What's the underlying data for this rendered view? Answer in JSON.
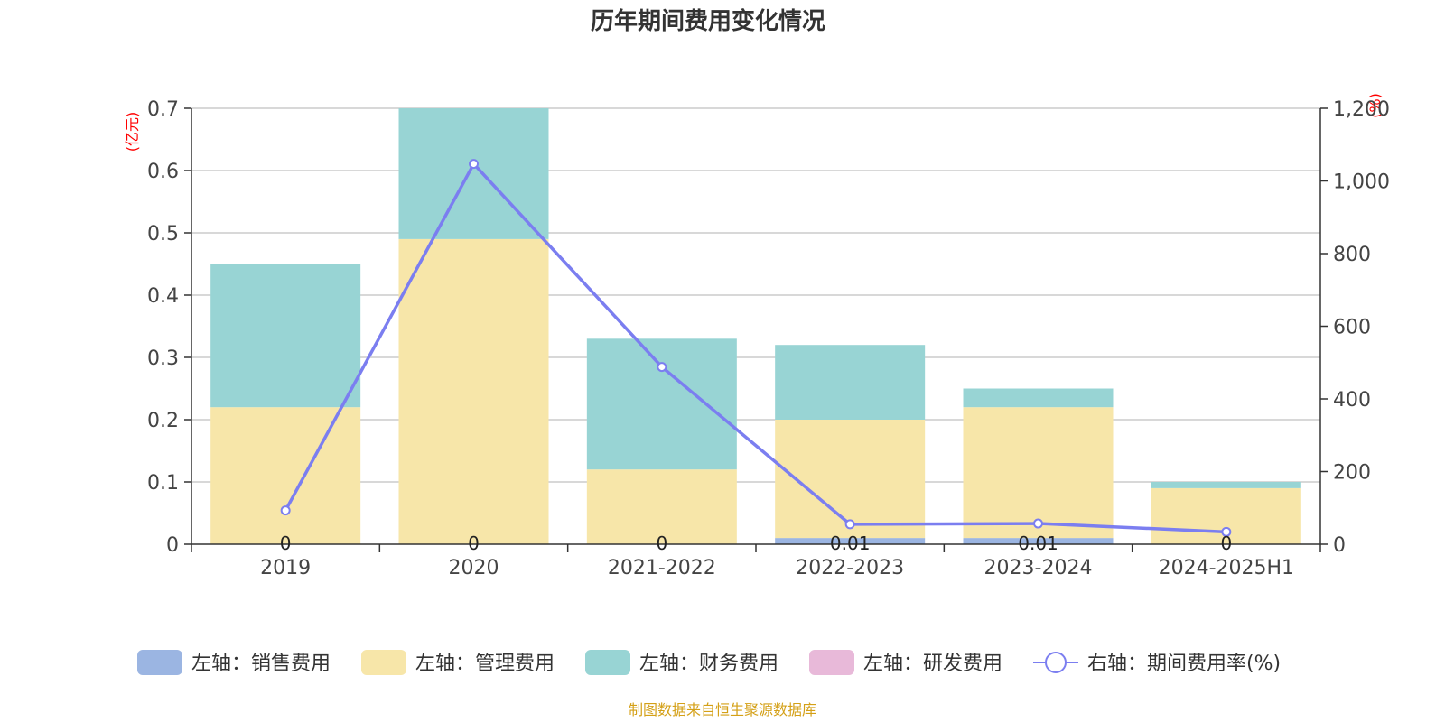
{
  "chart_data": {
    "type": "bar",
    "stacked": true,
    "title": "历年期间费用变化情况",
    "categories": [
      "2019",
      "2020",
      "2021-2022",
      "2022-2023",
      "2023-2024",
      "2024-2025H1"
    ],
    "left_axis": {
      "unit": "(亿元)",
      "min": 0,
      "max": 0.7,
      "ticks": [
        "0",
        "0.1",
        "0.2",
        "0.3",
        "0.4",
        "0.5",
        "0.6",
        "0.7"
      ]
    },
    "right_axis": {
      "unit": "(%)",
      "min": 0,
      "max": 1200,
      "ticks": [
        "0",
        "200",
        "400",
        "600",
        "800",
        "1,000",
        "1,200"
      ]
    },
    "series": [
      {
        "name": "左轴：销售费用",
        "type": "bar",
        "axis": "left",
        "color": "#9bb5e2",
        "values": [
          0,
          0,
          0,
          0.01,
          0.01,
          0
        ],
        "labels": [
          "0",
          "0",
          "0",
          "0.01",
          "0.01",
          "0"
        ]
      },
      {
        "name": "左轴：管理费用",
        "type": "bar",
        "axis": "left",
        "color": "#f7e6a9",
        "values": [
          0.22,
          0.49,
          0.12,
          0.19,
          0.21,
          0.09
        ]
      },
      {
        "name": "左轴：财务费用",
        "type": "bar",
        "axis": "left",
        "color": "#98d4d4",
        "values": [
          0.23,
          0.21,
          0.21,
          0.12,
          0.03,
          0.01
        ]
      },
      {
        "name": "左轴：研发费用",
        "type": "bar",
        "axis": "left",
        "color": "#e8b9d9",
        "values": [
          0,
          0,
          0,
          0,
          0,
          0
        ]
      },
      {
        "name": "右轴：期间费用率(%)",
        "type": "line",
        "axis": "right",
        "color": "#7b7ef0",
        "values": [
          93,
          1047,
          488,
          55,
          57,
          34
        ]
      }
    ],
    "legend_position": "bottom",
    "grid": true
  },
  "source": {
    "text": "制图数据来自恒生聚源数据库",
    "color": "#d4a017"
  }
}
